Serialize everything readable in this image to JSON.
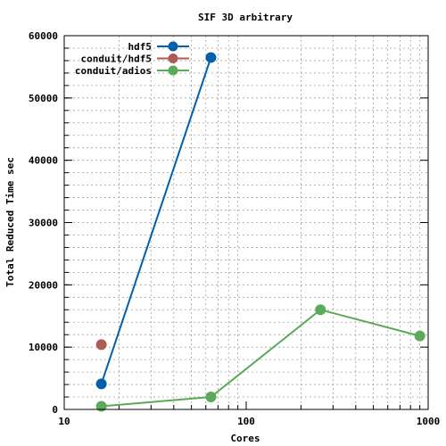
{
  "chart_data": {
    "type": "line",
    "title": "SIF 3D arbitrary",
    "xlabel": "Cores",
    "ylabel": "Total Reduced Time sec",
    "xscale": "log",
    "xlim": [
      10,
      1000
    ],
    "ylim": [
      0,
      60000
    ],
    "xticks": [
      10,
      100,
      1000
    ],
    "xtick_labels": [
      "10",
      "100",
      "1000"
    ],
    "yticks": [
      0,
      10000,
      20000,
      30000,
      40000,
      50000,
      60000
    ],
    "ytick_labels": [
      "0",
      "10000",
      "20000",
      "30000",
      "40000",
      "50000",
      "60000"
    ],
    "grid": true,
    "legend_position": "top-left",
    "series": [
      {
        "name": "hdf5",
        "color": "#0060ad",
        "x": [
          16,
          64
        ],
        "y": [
          4100,
          56500
        ]
      },
      {
        "name": "conduit/hdf5",
        "color": "#b05a58",
        "x": [
          16
        ],
        "y": [
          10400
        ]
      },
      {
        "name": "conduit/adios",
        "color": "#5aaa5a",
        "x": [
          16,
          64,
          256,
          900
        ],
        "y": [
          500,
          2000,
          16000,
          11800
        ]
      }
    ]
  }
}
